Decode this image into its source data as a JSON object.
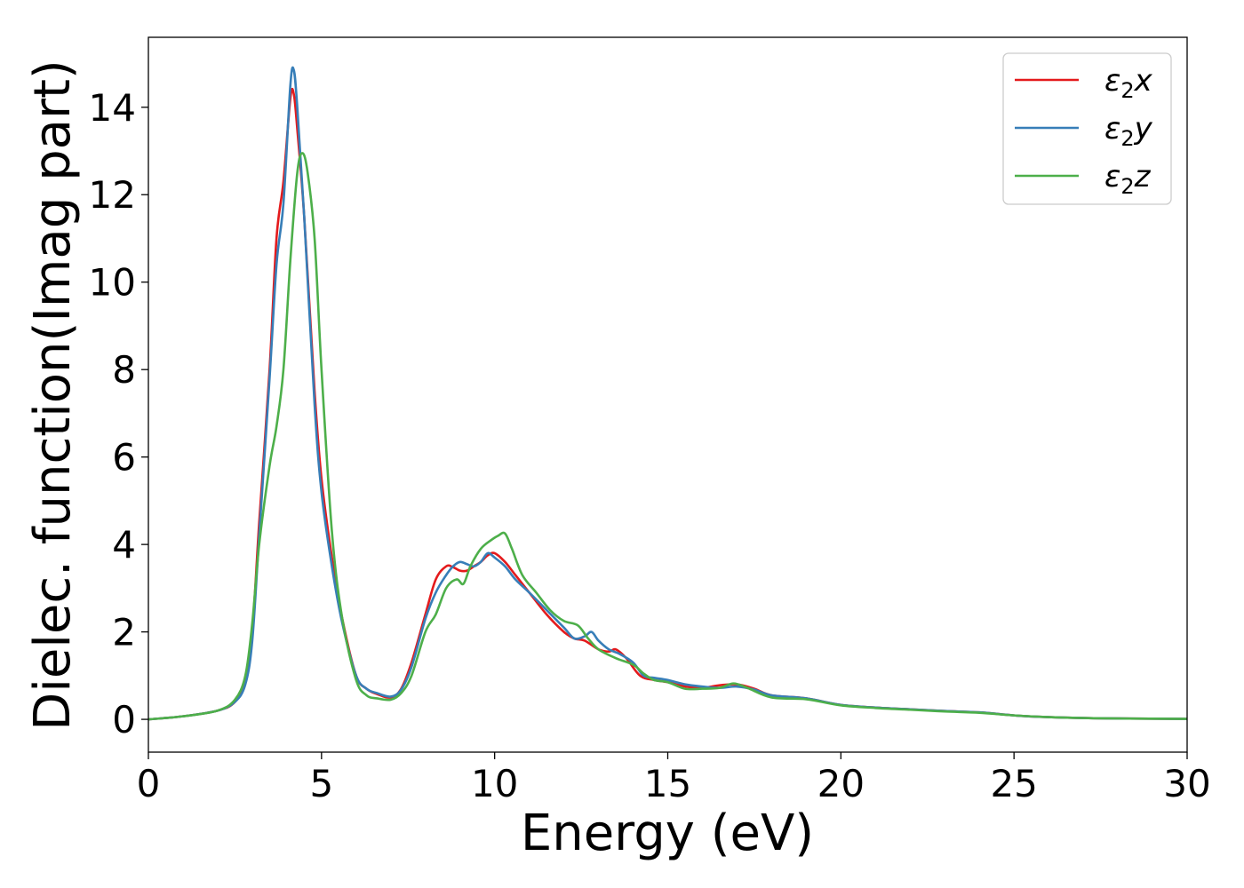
{
  "chart_data": {
    "type": "line",
    "xlabel": "Energy (eV)",
    "ylabel": "Dielec. function(Imag part)",
    "xlim": [
      0,
      30
    ],
    "ylim": [
      -0.75,
      15.6
    ],
    "xticks": [
      0,
      5,
      10,
      15,
      20,
      25,
      30
    ],
    "yticks": [
      0,
      2,
      4,
      6,
      8,
      10,
      12,
      14
    ],
    "grid": false,
    "legend_position": "top-right",
    "series": [
      {
        "name": "ε₂x",
        "legend": {
          "base": "ε",
          "sub": "2",
          "comp": "x"
        },
        "color": "#e41a1c",
        "x": [
          0,
          1,
          2,
          2.5,
          2.8,
          3.0,
          3.2,
          3.5,
          3.7,
          3.9,
          4.1,
          4.2,
          4.3,
          4.5,
          4.8,
          5.0,
          5.3,
          5.6,
          6.0,
          6.3,
          6.6,
          7.0,
          7.3,
          7.6,
          8.0,
          8.3,
          8.6,
          8.8,
          9.0,
          9.2,
          9.4,
          9.6,
          9.8,
          10.0,
          10.3,
          10.6,
          11.0,
          11.5,
          12.0,
          12.3,
          12.6,
          13.0,
          13.3,
          13.5,
          13.8,
          14.2,
          14.6,
          15.0,
          15.5,
          16.0,
          16.5,
          17.0,
          17.5,
          18.0,
          19.0,
          20.0,
          21.0,
          22.0,
          23.0,
          24.0,
          25.0,
          26.0,
          27.0,
          28.0,
          30.0
        ],
        "y": [
          0,
          0.07,
          0.2,
          0.4,
          0.9,
          2.0,
          4.5,
          8.0,
          11.0,
          12.3,
          14.2,
          14.3,
          13.5,
          11.5,
          7.5,
          5.5,
          3.7,
          2.3,
          1.0,
          0.7,
          0.58,
          0.5,
          0.7,
          1.3,
          2.4,
          3.2,
          3.5,
          3.48,
          3.4,
          3.4,
          3.5,
          3.6,
          3.75,
          3.8,
          3.6,
          3.3,
          2.9,
          2.4,
          2.0,
          1.85,
          1.8,
          1.6,
          1.55,
          1.6,
          1.4,
          1.0,
          0.9,
          0.85,
          0.75,
          0.72,
          0.78,
          0.8,
          0.7,
          0.55,
          0.48,
          0.33,
          0.27,
          0.23,
          0.19,
          0.16,
          0.09,
          0.05,
          0.03,
          0.02,
          0.01
        ]
      },
      {
        "name": "ε₂y",
        "legend": {
          "base": "ε",
          "sub": "2",
          "comp": "y"
        },
        "color": "#377eb8",
        "x": [
          0,
          1,
          2,
          2.5,
          2.8,
          3.0,
          3.2,
          3.5,
          3.7,
          3.9,
          4.1,
          4.2,
          4.3,
          4.5,
          4.8,
          5.0,
          5.3,
          5.6,
          6.0,
          6.3,
          6.6,
          7.0,
          7.3,
          7.6,
          8.0,
          8.3,
          8.6,
          8.8,
          9.0,
          9.2,
          9.4,
          9.6,
          9.8,
          10.0,
          10.3,
          10.6,
          11.0,
          11.5,
          12.0,
          12.3,
          12.6,
          12.8,
          13.0,
          13.3,
          13.6,
          14.0,
          14.3,
          14.6,
          15.0,
          15.5,
          16.0,
          16.5,
          17.0,
          17.5,
          18.0,
          19.0,
          20.0,
          21.0,
          22.0,
          23.0,
          24.0,
          25.0,
          26.0,
          27.0,
          28.0,
          30.0
        ],
        "y": [
          0,
          0.07,
          0.2,
          0.4,
          0.8,
          1.8,
          4.2,
          7.8,
          10.4,
          11.8,
          14.5,
          14.85,
          14.0,
          11.5,
          7.2,
          5.2,
          3.5,
          2.2,
          1.0,
          0.7,
          0.6,
          0.52,
          0.68,
          1.2,
          2.3,
          2.9,
          3.3,
          3.5,
          3.6,
          3.55,
          3.5,
          3.6,
          3.8,
          3.7,
          3.5,
          3.2,
          2.9,
          2.5,
          2.1,
          1.85,
          1.9,
          2.0,
          1.8,
          1.6,
          1.5,
          1.3,
          1.0,
          0.95,
          0.9,
          0.8,
          0.75,
          0.72,
          0.75,
          0.68,
          0.55,
          0.48,
          0.33,
          0.27,
          0.23,
          0.19,
          0.16,
          0.09,
          0.05,
          0.03,
          0.02,
          0.01
        ]
      },
      {
        "name": "ε₂z",
        "legend": {
          "base": "ε",
          "sub": "2",
          "comp": "z"
        },
        "color": "#4daf4a",
        "x": [
          0,
          1,
          2,
          2.5,
          2.8,
          3.0,
          3.2,
          3.5,
          3.7,
          3.9,
          4.1,
          4.3,
          4.45,
          4.6,
          4.8,
          5.0,
          5.3,
          5.6,
          6.0,
          6.3,
          6.6,
          7.0,
          7.3,
          7.6,
          8.0,
          8.3,
          8.6,
          8.9,
          9.1,
          9.3,
          9.6,
          9.9,
          10.1,
          10.3,
          10.5,
          10.8,
          11.2,
          11.6,
          12.0,
          12.4,
          12.7,
          13.0,
          13.5,
          14.0,
          14.3,
          14.6,
          15.0,
          15.5,
          16.0,
          16.5,
          16.9,
          17.3,
          18.0,
          19.0,
          20.0,
          21.0,
          22.0,
          23.0,
          24.0,
          25.0,
          26.0,
          27.0,
          28.0,
          30.0
        ],
        "y": [
          0,
          0.07,
          0.2,
          0.45,
          1.0,
          2.2,
          4.0,
          5.8,
          6.7,
          8.0,
          10.5,
          12.5,
          12.95,
          12.5,
          11.0,
          8.0,
          4.3,
          2.3,
          0.9,
          0.55,
          0.48,
          0.45,
          0.6,
          1.0,
          2.0,
          2.4,
          3.0,
          3.2,
          3.1,
          3.5,
          3.9,
          4.1,
          4.2,
          4.25,
          3.9,
          3.3,
          2.9,
          2.5,
          2.25,
          2.15,
          1.85,
          1.6,
          1.4,
          1.25,
          1.05,
          0.9,
          0.85,
          0.7,
          0.7,
          0.72,
          0.82,
          0.72,
          0.5,
          0.46,
          0.32,
          0.26,
          0.22,
          0.18,
          0.15,
          0.09,
          0.05,
          0.03,
          0.02,
          0.01
        ]
      }
    ]
  }
}
